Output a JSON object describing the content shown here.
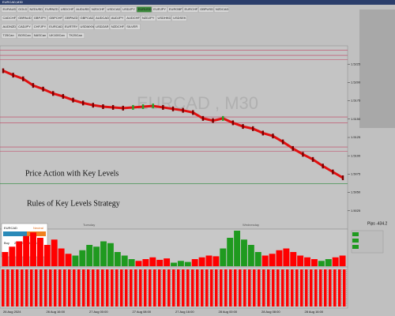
{
  "window_title": "EURCAD,M30",
  "symbol_rows": [
    [
      "EURAUD",
      "GOLD",
      "NZDUSD",
      "EURNZD",
      "USDCHF",
      "AUDUSD",
      "NZDCHF",
      "USDCAD",
      "USDJPY",
      "EURUSD",
      "EURJPY",
      "EURGBP",
      "EURCHF",
      "GBPUSD",
      "NZDCAD"
    ],
    [
      "CADCHF",
      "GBPAUD",
      "GBPJPY",
      "GBPCHF",
      "GBPNZD",
      "GBPCAD",
      "AUDCAD",
      "AUDJPY",
      "AUDCHF",
      "NZDJPY",
      "USDHKD",
      "USDSEK"
    ],
    [
      "AUDNZD",
      "CADJPY",
      "CHFJPY",
      "EURCAD",
      "EURTRY",
      "USDMXN",
      "USDZAR",
      "NZDCHF",
      "SILVER"
    ],
    [
      "T25Can",
      "BOSCan",
      "NASCan",
      "UK100Can",
      "TK25Can"
    ]
  ],
  "chart": {
    "watermark": "EURCAD , M30",
    "closes": [
      1.5216,
      1.521,
      1.5205,
      1.5196,
      1.5191,
      1.5185,
      1.5181,
      1.5176,
      1.5172,
      1.5169,
      1.5167,
      1.5166,
      1.5165,
      1.5166,
      1.5167,
      1.5168,
      1.5166,
      1.5164,
      1.5162,
      1.5159,
      1.5151,
      1.5148,
      1.5151,
      1.5145,
      1.514,
      1.5137,
      1.5131,
      1.5127,
      1.5119,
      1.511,
      1.5102,
      1.5095,
      1.5086,
      1.5078,
      1.507
    ],
    "ylim": [
      1.5,
      1.525
    ],
    "yticks": [
      1.5225,
      {
        "value": 1.52,
        "label": "1.5200"
      },
      1.5175,
      {
        "value": 1.515,
        "label": "1.5150"
      },
      1.5125,
      {
        "value": 1.51,
        "label": "1.5100"
      },
      1.5075,
      {
        "value": 1.505,
        "label": "1.5050"
      },
      1.5025
    ],
    "key_levels": [
      {
        "price": 1.5244,
        "color": "#c04060"
      },
      {
        "price": 1.5237,
        "color": "#c04060"
      },
      {
        "price": 1.5231,
        "color": "#c04060"
      },
      {
        "price": 1.5153,
        "color": "#c04060"
      },
      {
        "price": 1.5145,
        "color": "#c04060"
      },
      {
        "price": 1.5112,
        "color": "#c04060"
      },
      {
        "price": 1.5106,
        "color": "#c04060"
      },
      {
        "price": 1.5062,
        "color": "#2a8a3a"
      }
    ],
    "annotations": [
      "Price Action with Key Levels",
      "Rules of Key Levels Strategy"
    ],
    "pips": "Pips -434.2",
    "sessions": [
      "Tuesday",
      "Wednesday"
    ]
  },
  "panel": {
    "symbol": "EURCAD",
    "signal": "Neutral",
    "side": "Buy",
    "time": "2024.08.28 11:51"
  },
  "histogram": {
    "ylim": [
      0,
      100
    ],
    "values": [
      40,
      55,
      70,
      85,
      95,
      80,
      60,
      75,
      50,
      35,
      30,
      45,
      60,
      55,
      70,
      65,
      40,
      30,
      20,
      15,
      20,
      25,
      18,
      22,
      10,
      15,
      12,
      20,
      25,
      30,
      28,
      50,
      80,
      100,
      75,
      60,
      40,
      30,
      35,
      45,
      50,
      40,
      30,
      25,
      20,
      15,
      20,
      25,
      30
    ],
    "colors": [
      "#f00",
      "#f00",
      "#f00",
      "#f00",
      "#f00",
      "#f00",
      "#f00",
      "#f00",
      "#f00",
      "#f00",
      "#1f9a1f",
      "#1f9a1f",
      "#1f9a1f",
      "#1f9a1f",
      "#1f9a1f",
      "#1f9a1f",
      "#1f9a1f",
      "#1f9a1f",
      "#1f9a1f",
      "#f00",
      "#f00",
      "#f00",
      "#f00",
      "#f00",
      "#1f9a1f",
      "#1f9a1f",
      "#1f9a1f",
      "#f00",
      "#f00",
      "#f00",
      "#f00",
      "#1f9a1f",
      "#1f9a1f",
      "#1f9a1f",
      "#1f9a1f",
      "#1f9a1f",
      "#1f9a1f",
      "#f00",
      "#f00",
      "#f00",
      "#f00",
      "#f00",
      "#f00",
      "#f00",
      "#f00",
      "#1f9a1f",
      "#1f9a1f",
      "#f00",
      "#f00"
    ]
  },
  "time_axis": [
    "26 Aug 2024",
    "26 Aug 16:00",
    "27 Aug 00:00",
    "27 Aug 08:00",
    "27 Aug 16:00",
    "28 Aug 00:00",
    "28 Aug 08:00",
    "28 Aug 16:00"
  ]
}
